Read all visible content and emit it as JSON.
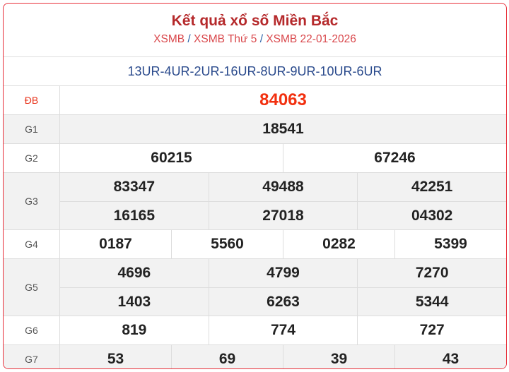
{
  "header": {
    "title": "Kết quả xổ số Miền Bắc",
    "crumbs": [
      "XSMB",
      "XSMB Thứ 5",
      "XSMB 22-01-2026"
    ],
    "separator": "/"
  },
  "codes": "13UR-4UR-2UR-16UR-8UR-9UR-10UR-6UR",
  "prizes": [
    {
      "label": "ĐB",
      "rows": [
        [
          "84063"
        ]
      ]
    },
    {
      "label": "G1",
      "rows": [
        [
          "18541"
        ]
      ]
    },
    {
      "label": "G2",
      "rows": [
        [
          "60215",
          "67246"
        ]
      ]
    },
    {
      "label": "G3",
      "rows": [
        [
          "83347",
          "49488",
          "42251"
        ],
        [
          "16165",
          "27018",
          "04302"
        ]
      ]
    },
    {
      "label": "G4",
      "rows": [
        [
          "0187",
          "5560",
          "0282",
          "5399"
        ]
      ]
    },
    {
      "label": "G5",
      "rows": [
        [
          "4696",
          "4799",
          "7270"
        ],
        [
          "1403",
          "6263",
          "5344"
        ]
      ]
    },
    {
      "label": "G6",
      "rows": [
        [
          "819",
          "774",
          "727"
        ]
      ]
    },
    {
      "label": "G7",
      "rows": [
        [
          "53",
          "69",
          "39",
          "43"
        ]
      ]
    }
  ],
  "colors": {
    "border": "#e8303a",
    "title": "#b5292b",
    "special": "#f2300f",
    "codes": "#2a4a8c"
  }
}
